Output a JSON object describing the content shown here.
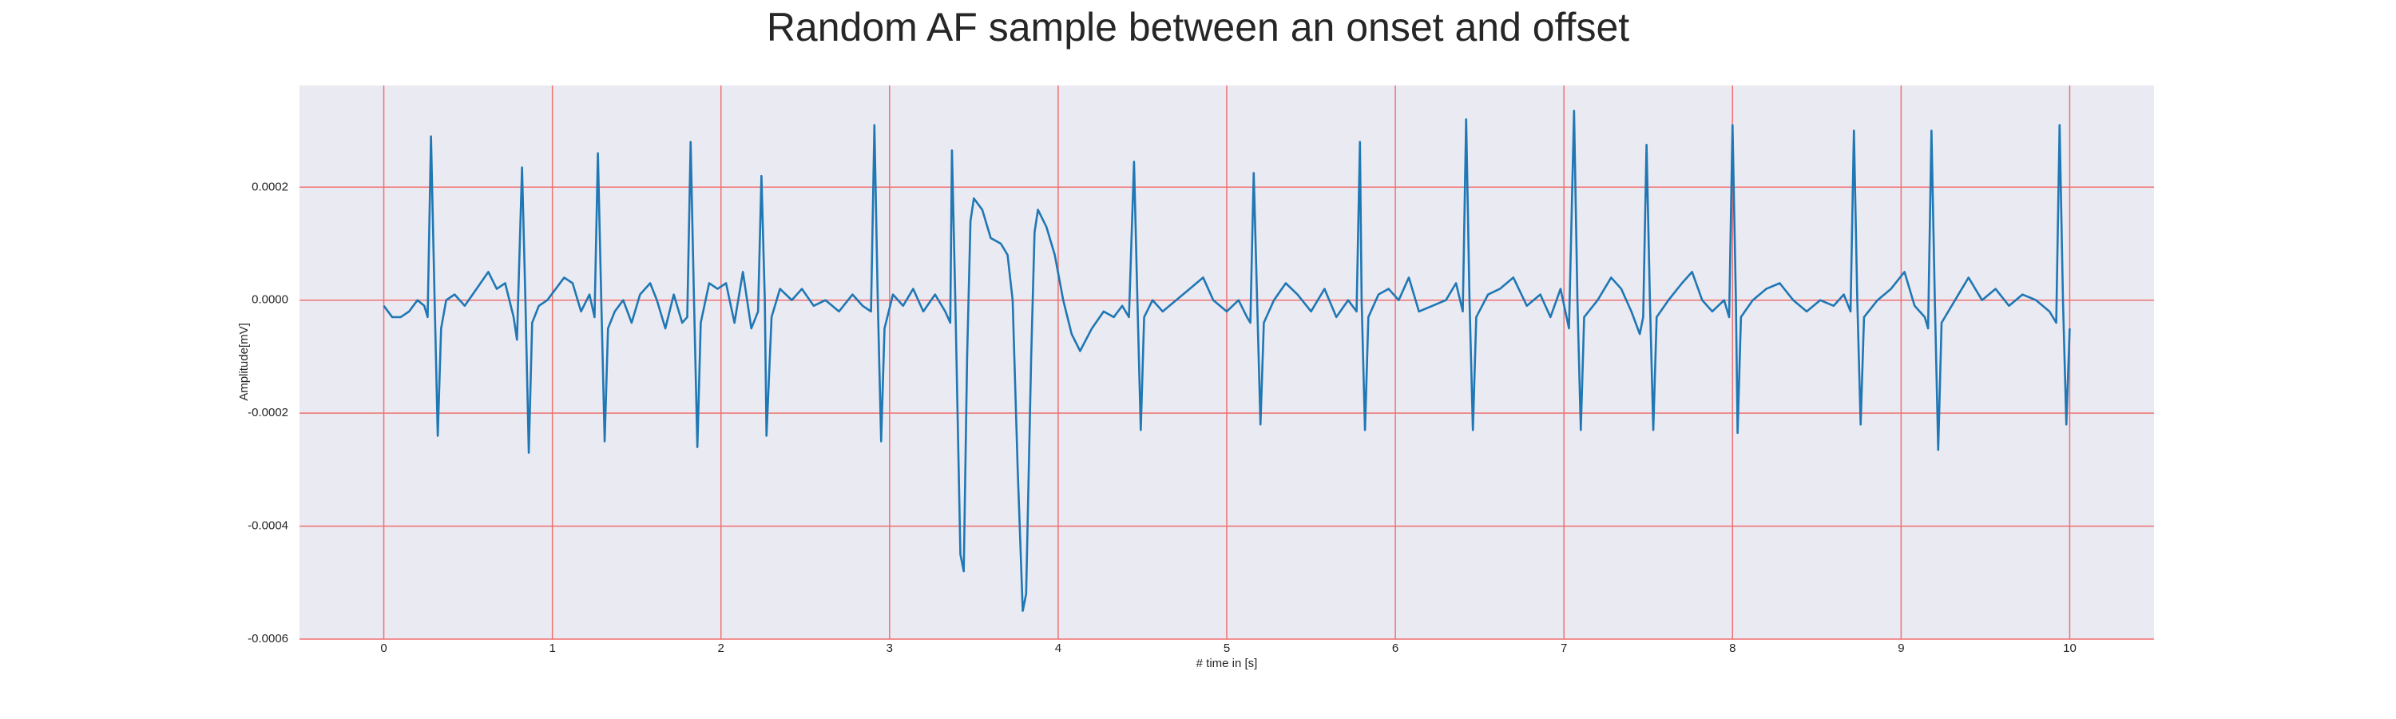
{
  "chart_data": {
    "type": "line",
    "title": "Random AF sample between an onset and offset",
    "xlabel": "# time in [s]",
    "ylabel": "Amplitude[mV]",
    "color": "#1f77b4",
    "grid": true,
    "grid_color": "#f07070",
    "background": "#eaeaf2",
    "xlim": [
      -0.5,
      10.5
    ],
    "xticks": [
      0,
      1,
      2,
      3,
      4,
      5,
      6,
      7,
      8,
      9,
      10
    ],
    "ylim": [
      -0.0006,
      0.00038
    ],
    "yticks": [
      0.0002,
      {
        "value": 0,
        "label": "0.0000"
      },
      -0.0002,
      -0.0004,
      -0.0006
    ],
    "x": [
      0.0,
      0.05,
      0.1,
      0.15,
      0.2,
      0.24,
      0.26,
      0.28,
      0.3,
      0.32,
      0.34,
      0.37,
      0.42,
      0.48,
      0.55,
      0.62,
      0.67,
      0.72,
      0.77,
      0.79,
      0.82,
      0.84,
      0.86,
      0.88,
      0.92,
      0.97,
      1.02,
      1.07,
      1.12,
      1.17,
      1.22,
      1.25,
      1.27,
      1.29,
      1.31,
      1.33,
      1.37,
      1.42,
      1.47,
      1.52,
      1.58,
      1.62,
      1.67,
      1.72,
      1.77,
      1.8,
      1.82,
      1.84,
      1.86,
      1.88,
      1.93,
      1.98,
      2.03,
      2.08,
      2.13,
      2.18,
      2.22,
      2.24,
      2.26,
      2.27,
      2.3,
      2.35,
      2.42,
      2.48,
      2.55,
      2.62,
      2.7,
      2.78,
      2.84,
      2.89,
      2.91,
      2.93,
      2.95,
      2.97,
      3.02,
      3.08,
      3.14,
      3.2,
      3.27,
      3.33,
      3.36,
      3.37,
      3.39,
      3.42,
      3.44,
      3.46,
      3.48,
      3.5,
      3.55,
      3.6,
      3.66,
      3.7,
      3.73,
      3.76,
      3.79,
      3.81,
      3.84,
      3.86,
      3.88,
      3.93,
      3.98,
      4.03,
      4.08,
      4.13,
      4.2,
      4.27,
      4.33,
      4.38,
      4.42,
      4.45,
      4.47,
      4.49,
      4.51,
      4.56,
      4.62,
      4.7,
      4.78,
      4.86,
      4.92,
      5.0,
      5.07,
      5.12,
      5.14,
      5.16,
      5.18,
      5.2,
      5.22,
      5.28,
      5.35,
      5.42,
      5.5,
      5.58,
      5.65,
      5.72,
      5.77,
      5.79,
      5.8,
      5.82,
      5.84,
      5.9,
      5.96,
      6.02,
      6.08,
      6.14,
      6.22,
      6.3,
      6.36,
      6.4,
      6.42,
      6.44,
      6.46,
      6.48,
      6.55,
      6.62,
      6.7,
      6.78,
      6.86,
      6.92,
      6.98,
      7.03,
      7.06,
      7.08,
      7.1,
      7.12,
      7.2,
      7.28,
      7.34,
      7.4,
      7.45,
      7.47,
      7.49,
      7.51,
      7.53,
      7.55,
      7.62,
      7.7,
      7.76,
      7.82,
      7.88,
      7.95,
      7.98,
      8.0,
      8.02,
      8.03,
      8.05,
      8.12,
      8.2,
      8.28,
      8.36,
      8.44,
      8.52,
      8.6,
      8.66,
      8.7,
      8.72,
      8.74,
      8.76,
      8.78,
      8.86,
      8.94,
      9.02,
      9.08,
      9.14,
      9.16,
      9.18,
      9.2,
      9.22,
      9.24,
      9.32,
      9.4,
      9.48,
      9.56,
      9.64,
      9.72,
      9.8,
      9.88,
      9.92,
      9.94,
      9.96,
      9.98,
      10.0
    ],
    "values": [
      -1e-05,
      -3e-05,
      -3e-05,
      -2e-05,
      0.0,
      -1e-05,
      -3e-05,
      0.00029,
      2e-05,
      -0.00024,
      -5e-05,
      0.0,
      1e-05,
      -1e-05,
      2e-05,
      5e-05,
      2e-05,
      3e-05,
      -3e-05,
      -7e-05,
      0.000235,
      0.0,
      -0.00027,
      -4e-05,
      -1e-05,
      0.0,
      2e-05,
      4e-05,
      3e-05,
      -2e-05,
      1e-05,
      -3e-05,
      0.00026,
      0.0,
      -0.00025,
      -5e-05,
      -2e-05,
      0.0,
      -4e-05,
      1e-05,
      3e-05,
      0.0,
      -5e-05,
      1e-05,
      -4e-05,
      -3e-05,
      0.00028,
      0.0,
      -0.00026,
      -4e-05,
      3e-05,
      2e-05,
      3e-05,
      -4e-05,
      5e-05,
      -5e-05,
      -2e-05,
      0.00022,
      0.0,
      -0.00024,
      -3e-05,
      2e-05,
      0.0,
      2e-05,
      -1e-05,
      0.0,
      -2e-05,
      1e-05,
      -1e-05,
      -2e-05,
      0.00031,
      0.0,
      -0.00025,
      -5e-05,
      1e-05,
      -1e-05,
      2e-05,
      -2e-05,
      1e-05,
      -2e-05,
      -4e-05,
      0.000265,
      0.0,
      -0.00045,
      -0.00048,
      -0.0001,
      0.00014,
      0.00018,
      0.00016,
      0.00011,
      0.0001,
      8e-05,
      0.0,
      -0.0003,
      -0.00055,
      -0.00052,
      -0.0001,
      0.00012,
      0.00016,
      0.00013,
      8e-05,
      0.0,
      -6e-05,
      -9e-05,
      -5e-05,
      -2e-05,
      -3e-05,
      -1e-05,
      -3e-05,
      0.000245,
      0.0,
      -0.00023,
      -3e-05,
      0.0,
      -2e-05,
      0.0,
      2e-05,
      4e-05,
      0.0,
      -2e-05,
      0.0,
      -3e-05,
      -4e-05,
      0.000225,
      0.0,
      -0.00022,
      -4e-05,
      0.0,
      3e-05,
      1e-05,
      -2e-05,
      2e-05,
      -3e-05,
      0.0,
      -2e-05,
      0.00028,
      0.0,
      -0.00023,
      -3e-05,
      1e-05,
      2e-05,
      0.0,
      4e-05,
      -2e-05,
      -1e-05,
      0.0,
      3e-05,
      -2e-05,
      0.00032,
      0.0,
      -0.00023,
      -3e-05,
      1e-05,
      2e-05,
      4e-05,
      -1e-05,
      1e-05,
      -3e-05,
      2e-05,
      -5e-05,
      0.000335,
      0.0,
      -0.00023,
      -3e-05,
      0.0,
      4e-05,
      2e-05,
      -2e-05,
      -6e-05,
      -3e-05,
      0.000275,
      0.0,
      -0.00023,
      -3e-05,
      0.0,
      3e-05,
      5e-05,
      0.0,
      -2e-05,
      0.0,
      -3e-05,
      0.00031,
      0.0,
      -0.000235,
      -3e-05,
      0.0,
      2e-05,
      3e-05,
      0.0,
      -2e-05,
      0.0,
      -1e-05,
      1e-05,
      -2e-05,
      0.0003,
      0.0,
      -0.00022,
      -3e-05,
      0.0,
      2e-05,
      5e-05,
      -1e-05,
      -3e-05,
      -5e-05,
      0.0003,
      0.0,
      -0.000265,
      -4e-05,
      0.0,
      4e-05,
      0.0,
      2e-05,
      -1e-05,
      1e-05,
      0.0,
      -2e-05,
      -4e-05,
      0.00031,
      0.0,
      -0.00022,
      -5e-05
    ]
  }
}
